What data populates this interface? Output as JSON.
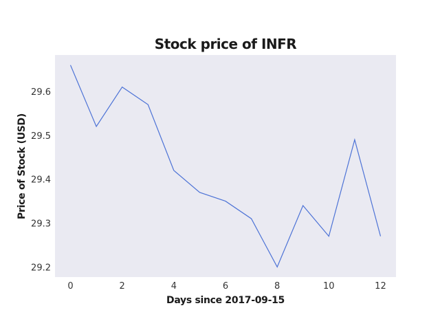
{
  "chart_data": {
    "type": "line",
    "title": "Stock price of INFR",
    "xlabel": "Days since 2017-09-15",
    "ylabel": "Price of Stock (USD)",
    "x": [
      0,
      1,
      2,
      3,
      4,
      5,
      6,
      7,
      8,
      9,
      10,
      11,
      12
    ],
    "series": [
      {
        "values": [
          29.66,
          29.52,
          29.61,
          29.57,
          29.42,
          29.37,
          29.35,
          29.31,
          29.2,
          29.34,
          29.27,
          29.49,
          29.27
        ]
      }
    ],
    "xlim": [
      -0.6,
      12.6
    ],
    "ylim": [
      29.177,
      29.683
    ],
    "xticks": [
      0,
      2,
      4,
      6,
      8,
      10,
      12
    ],
    "yticks": [
      29.2,
      29.3,
      29.4,
      29.5,
      29.6
    ],
    "ytick_labels": [
      "29.2",
      "29.3",
      "29.4",
      "29.5",
      "29.6"
    ],
    "grid": false,
    "colors": {
      "plot_background": "#eaeaf2",
      "line": "#4c72d6"
    }
  }
}
